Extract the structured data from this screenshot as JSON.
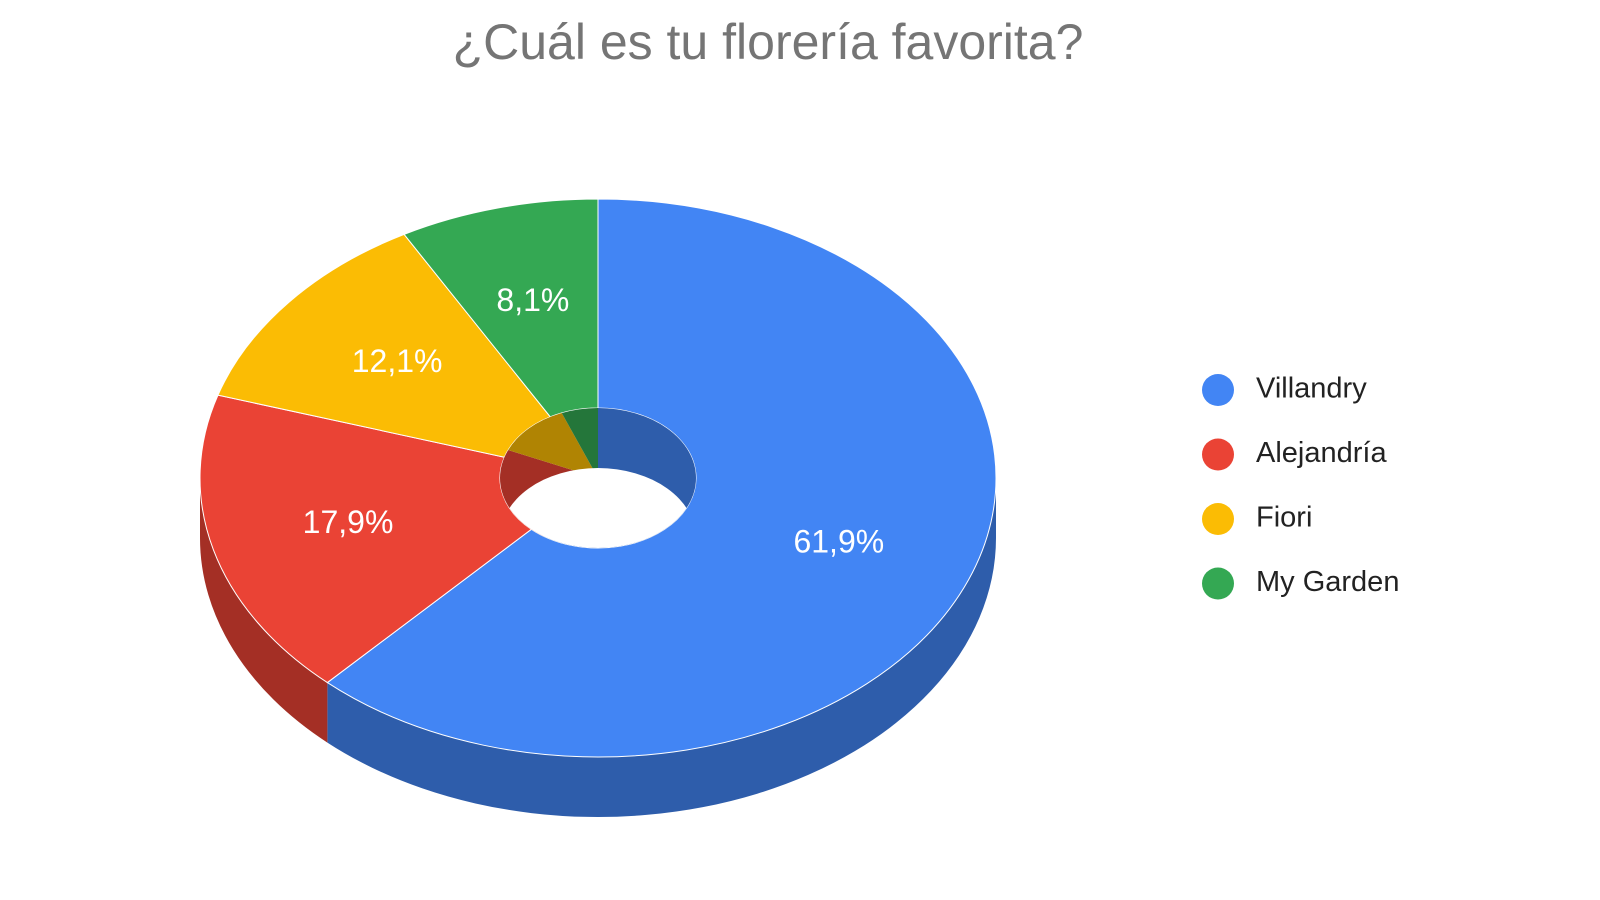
{
  "chart_data": {
    "type": "pie",
    "title": "¿Cuál es tu florería favorita?",
    "categories": [
      "Villandry",
      "Alejandría",
      "Fiori",
      "My Garden"
    ],
    "values": [
      61.9,
      17.9,
      12.1,
      8.1
    ],
    "value_labels": [
      "61,9%",
      "17,9%",
      "12,1%",
      "8,1%"
    ],
    "colors": [
      "#4285f4",
      "#ea4335",
      "#fbbc04",
      "#34a853"
    ],
    "legend": "right"
  }
}
